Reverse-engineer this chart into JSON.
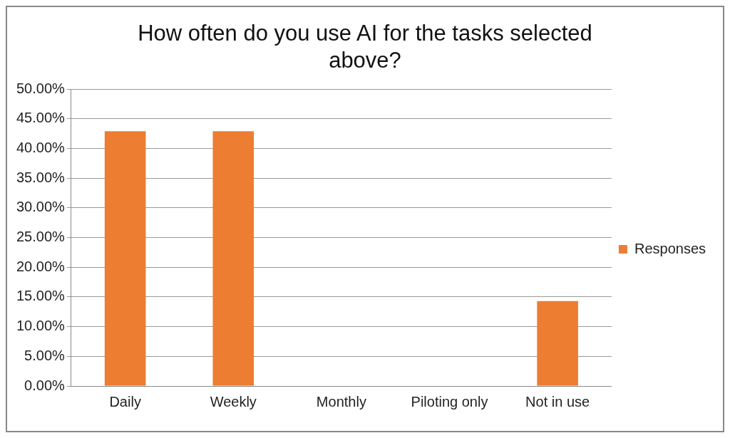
{
  "chart_data": {
    "type": "bar",
    "title": "How often do you use AI for the tasks selected above?",
    "categories": [
      "Daily",
      "Weekly",
      "Monthly",
      "Piloting only",
      "Not in use"
    ],
    "series": [
      {
        "name": "Responses",
        "color": "#ed7d31",
        "values": [
          42.9,
          42.9,
          0,
          0,
          14.3
        ]
      }
    ],
    "ylim": [
      0,
      50
    ],
    "yticks": [
      {
        "value": 0,
        "label": "0.00%"
      },
      {
        "value": 5,
        "label": "5.00%"
      },
      {
        "value": 10,
        "label": "10.00%"
      },
      {
        "value": 15,
        "label": "15.00%"
      },
      {
        "value": 20,
        "label": "20.00%"
      },
      {
        "value": 25,
        "label": "25.00%"
      },
      {
        "value": 30,
        "label": "30.00%"
      },
      {
        "value": 35,
        "label": "35.00%"
      },
      {
        "value": 40,
        "label": "40.00%"
      },
      {
        "value": 45,
        "label": "45.00%"
      },
      {
        "value": 50,
        "label": "50.00%"
      }
    ],
    "grid": "y",
    "legend": "right"
  }
}
